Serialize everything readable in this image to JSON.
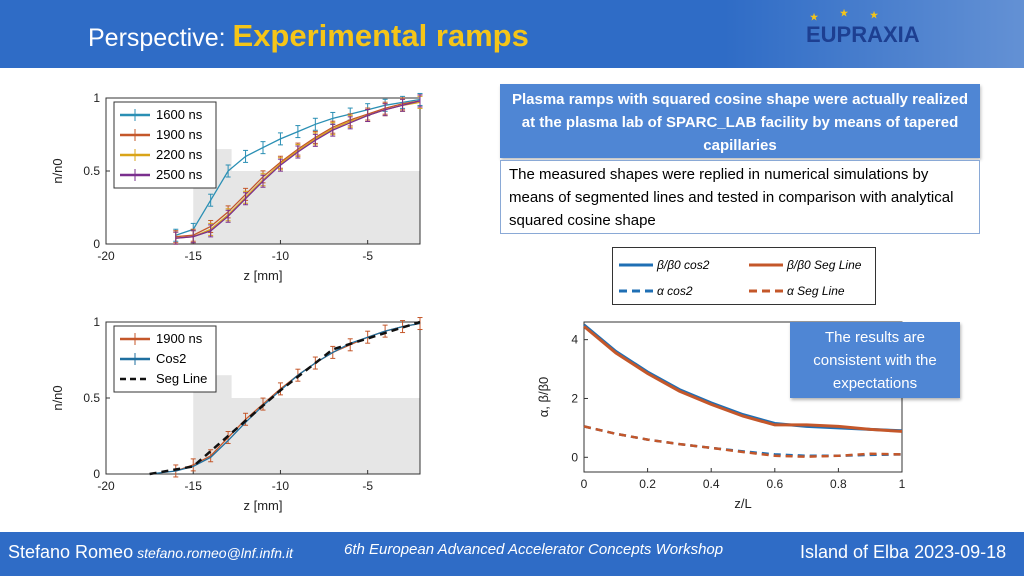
{
  "header": {
    "title_prefix": "Perspective:",
    "title_highlight": "Experimental ramps",
    "logo": "EUPRAXIA"
  },
  "info": {
    "heading": "Plasma ramps with squared cosine shape were actually realized at the plasma lab of SPARC_LAB facility by means of tapered capillaries",
    "body": "The measured shapes were replied in numerical simulations by means of segmented lines and tested in comparison with analytical squared cosine shape"
  },
  "result_box": "The results are consistent with the expectations",
  "footer": {
    "name": "Stefano Romeo",
    "email": "stefano.romeo@lnf.infn.it",
    "conference": "6th European Advanced Accelerator Concepts Workshop",
    "place_date": "Island of Elba 2023-09-18"
  },
  "chart_data": [
    {
      "type": "line",
      "xlabel": "z [mm]",
      "ylabel": "n/n0",
      "xlim": [
        -20,
        -2
      ],
      "ylim": [
        0,
        1
      ],
      "xticks": [
        "-20",
        "-15",
        "-10",
        "-5"
      ],
      "yticks": [
        "0",
        "0.5",
        "1"
      ],
      "legend": "top-left",
      "series": [
        {
          "name": "1600 ns",
          "color": "#2a8fb4",
          "x": [
            -16,
            -15,
            -14,
            -13,
            -12,
            -11,
            -10,
            -9,
            -8,
            -7,
            -6,
            -5,
            -4,
            -3,
            -2
          ],
          "y": [
            0.06,
            0.1,
            0.3,
            0.5,
            0.6,
            0.66,
            0.72,
            0.77,
            0.82,
            0.86,
            0.89,
            0.92,
            0.95,
            0.97,
            0.99
          ]
        },
        {
          "name": "1900 ns",
          "color": "#c4572a",
          "x": [
            -16,
            -15,
            -14,
            -13,
            -12,
            -11,
            -10,
            -9,
            -8,
            -7,
            -6,
            -5,
            -4,
            -3,
            -2
          ],
          "y": [
            0.05,
            0.06,
            0.12,
            0.22,
            0.34,
            0.46,
            0.56,
            0.65,
            0.73,
            0.8,
            0.85,
            0.89,
            0.93,
            0.96,
            0.98
          ]
        },
        {
          "name": "2200 ns",
          "color": "#d9a418",
          "x": [
            -16,
            -15,
            -14,
            -13,
            -12,
            -11,
            -10,
            -9,
            -8,
            -7,
            -6,
            -5,
            -4,
            -3,
            -2
          ],
          "y": [
            0.04,
            0.05,
            0.1,
            0.2,
            0.32,
            0.44,
            0.55,
            0.64,
            0.72,
            0.79,
            0.84,
            0.88,
            0.92,
            0.95,
            0.97
          ]
        },
        {
          "name": "2500 ns",
          "color": "#7a2f8e",
          "x": [
            -16,
            -15,
            -14,
            -13,
            -12,
            -11,
            -10,
            -9,
            -8,
            -7,
            -6,
            -5,
            -4,
            -3,
            -2
          ],
          "y": [
            0.04,
            0.05,
            0.09,
            0.19,
            0.31,
            0.43,
            0.54,
            0.63,
            0.71,
            0.78,
            0.83,
            0.88,
            0.92,
            0.95,
            0.98
          ]
        }
      ]
    },
    {
      "type": "line",
      "xlabel": "z [mm]",
      "ylabel": "n/n0",
      "xlim": [
        -20,
        -2
      ],
      "ylim": [
        0,
        1
      ],
      "xticks": [
        "-20",
        "-15",
        "-10",
        "-5"
      ],
      "yticks": [
        "0",
        "0.5",
        "1"
      ],
      "legend": "top-left",
      "series": [
        {
          "name": "1900 ns",
          "color": "#c4572a",
          "x": [
            -16,
            -15,
            -14,
            -13,
            -12,
            -11,
            -10,
            -9,
            -8,
            -7,
            -6,
            -5,
            -4,
            -3,
            -2
          ],
          "y": [
            0.02,
            0.06,
            0.12,
            0.24,
            0.36,
            0.46,
            0.56,
            0.65,
            0.73,
            0.8,
            0.85,
            0.9,
            0.94,
            0.97,
            0.99
          ]
        },
        {
          "name": "Cos2",
          "color": "#1f6f9f",
          "x": [
            -17.5,
            -16,
            -15,
            -14,
            -13,
            -12,
            -11,
            -10,
            -9,
            -8,
            -7,
            -6,
            -5,
            -4,
            -3,
            -2
          ],
          "y": [
            0,
            0.02,
            0.05,
            0.11,
            0.22,
            0.34,
            0.45,
            0.55,
            0.65,
            0.73,
            0.8,
            0.86,
            0.9,
            0.94,
            0.97,
            0.99
          ]
        },
        {
          "name": "Seg Line",
          "color": "#111111",
          "dashed": true,
          "x": [
            -17.5,
            -15,
            -14.5,
            -10,
            -7,
            -2
          ],
          "y": [
            0,
            0.05,
            0.1,
            0.55,
            0.82,
            1
          ]
        }
      ]
    },
    {
      "type": "line",
      "xlabel": "z/L",
      "ylabel": "α, β/β0",
      "xlim": [
        0,
        1
      ],
      "ylim": [
        -0.5,
        4.6
      ],
      "xticks": [
        "0",
        "0.2",
        "0.4",
        "0.6",
        "0.8",
        "1"
      ],
      "yticks": [
        "0",
        "2",
        "4"
      ],
      "legend": "top",
      "series": [
        {
          "name": "β/β0 cos2",
          "color": "#1f6fb4",
          "x": [
            0,
            0.1,
            0.2,
            0.3,
            0.4,
            0.5,
            0.6,
            0.7,
            0.8,
            0.9,
            1
          ],
          "y": [
            4.5,
            3.6,
            2.9,
            2.3,
            1.85,
            1.45,
            1.15,
            1.05,
            1.0,
            0.95,
            0.9
          ]
        },
        {
          "name": "β/β0 Seg Line",
          "color": "#c4572a",
          "x": [
            0,
            0.1,
            0.2,
            0.3,
            0.4,
            0.5,
            0.6,
            0.7,
            0.8,
            0.9,
            1
          ],
          "y": [
            4.45,
            3.55,
            2.85,
            2.25,
            1.8,
            1.4,
            1.1,
            1.1,
            1.05,
            0.95,
            0.88
          ]
        },
        {
          "name": "α cos2",
          "color": "#1f6fb4",
          "dashed": true,
          "x": [
            0,
            0.1,
            0.2,
            0.3,
            0.4,
            0.5,
            0.6,
            0.7,
            0.8,
            0.9,
            1
          ],
          "y": [
            1.05,
            0.8,
            0.6,
            0.45,
            0.32,
            0.2,
            0.1,
            0.05,
            0.05,
            0.08,
            0.1
          ]
        },
        {
          "name": "α Seg Line",
          "color": "#c4572a",
          "dashed": true,
          "x": [
            0,
            0.1,
            0.2,
            0.3,
            0.4,
            0.5,
            0.6,
            0.7,
            0.8,
            0.9,
            1
          ],
          "y": [
            1.05,
            0.8,
            0.6,
            0.45,
            0.32,
            0.18,
            0.05,
            0.02,
            0.05,
            0.12,
            0.1
          ]
        }
      ]
    }
  ]
}
